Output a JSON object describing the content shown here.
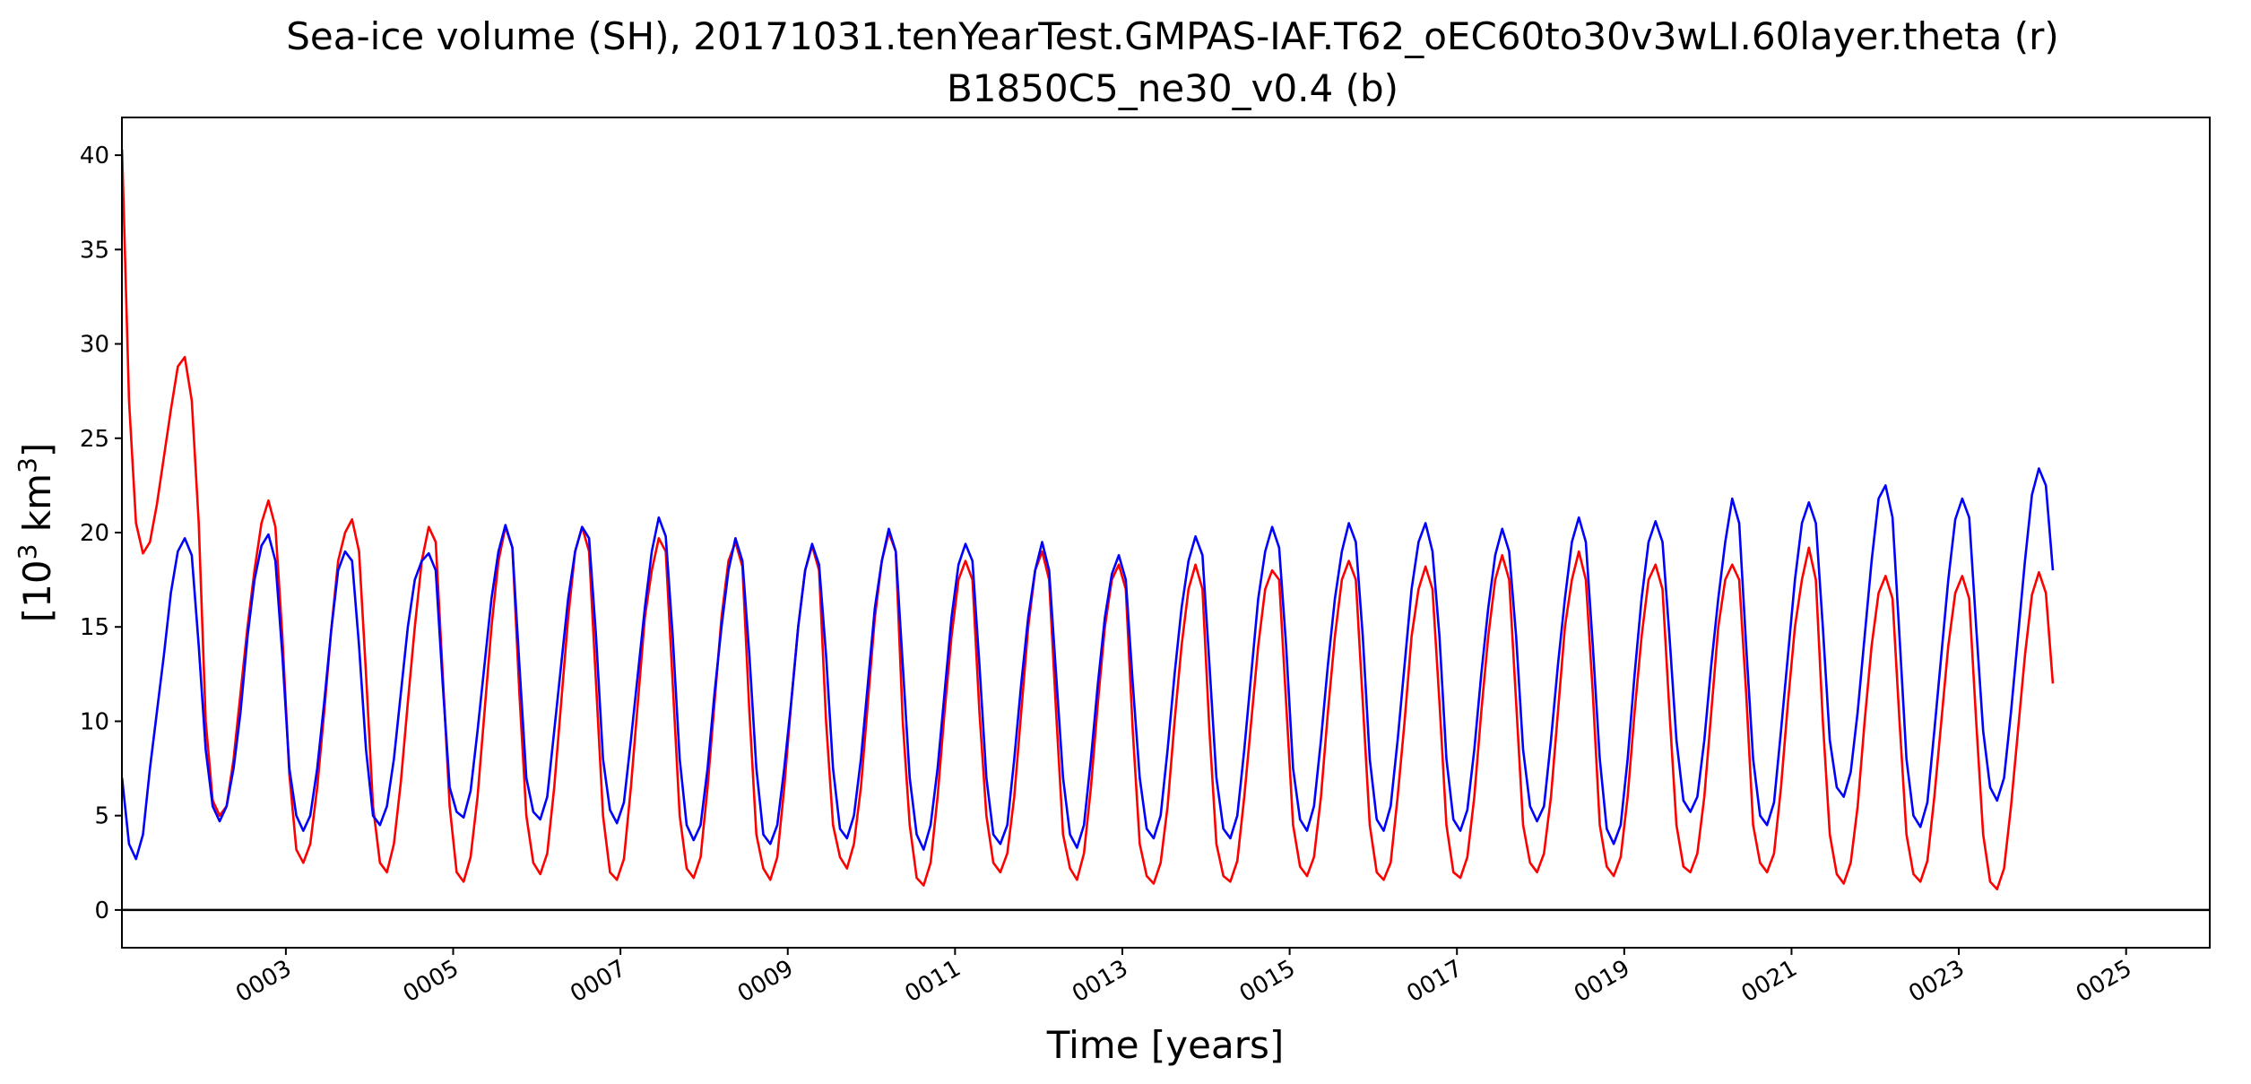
{
  "chart_data": {
    "type": "line",
    "title_line1": "Sea-ice volume (SH), 20171031.tenYearTest.GMPAS-IAF.T62_oEC60to30v3wLI.60layer.theta (r)",
    "title_line2": "B1850C5_ne30_v0.4 (b)",
    "xlabel": "Time [years]",
    "ylabel_base": "[10",
    "ylabel_exp": "3",
    "ylabel_mid": " km",
    "ylabel_exp2": "3",
    "ylabel_end": "]",
    "xlim": [
      1.04,
      26.0
    ],
    "ylim": [
      -2,
      42
    ],
    "xticks": [
      3,
      5,
      7,
      9,
      11,
      13,
      15,
      17,
      19,
      21,
      23,
      25
    ],
    "xtick_labels": [
      "0003",
      "0005",
      "0007",
      "0009",
      "0011",
      "0013",
      "0015",
      "0017",
      "0019",
      "0021",
      "0023",
      "0025"
    ],
    "yticks": [
      0,
      5,
      10,
      15,
      20,
      25,
      30,
      35,
      40
    ],
    "ytick_labels": [
      "0",
      "5",
      "10",
      "15",
      "20",
      "25",
      "30",
      "35",
      "40"
    ],
    "zero_line": true,
    "series": [
      {
        "name": "r",
        "color": "#ff0000",
        "x_start": 1.0417,
        "x_step": 0.08333,
        "values": [
          40.3,
          27.0,
          20.5,
          18.9,
          19.5,
          21.5,
          24.0,
          26.5,
          28.8,
          29.3,
          27.0,
          20.5,
          10.0,
          5.8,
          5.0,
          5.5,
          8.0,
          11.5,
          15.0,
          18.0,
          20.5,
          21.7,
          20.3,
          14.5,
          7.2,
          3.2,
          2.5,
          3.5,
          6.5,
          10.5,
          14.8,
          18.5,
          20.0,
          20.7,
          19.0,
          12.5,
          5.5,
          2.5,
          2.0,
          3.5,
          6.8,
          11.0,
          15.0,
          18.5,
          20.3,
          19.5,
          12.5,
          5.5,
          2.0,
          1.5,
          2.8,
          6.0,
          10.5,
          15.0,
          18.5,
          20.3,
          19.2,
          11.5,
          5.0,
          2.5,
          1.9,
          3.0,
          6.5,
          11.0,
          15.5,
          19.0,
          20.3,
          19.0,
          12.0,
          5.0,
          2.0,
          1.6,
          2.7,
          6.5,
          11.0,
          15.5,
          18.0,
          19.7,
          19.0,
          12.0,
          5.0,
          2.2,
          1.7,
          2.8,
          6.5,
          11.0,
          15.5,
          18.5,
          19.5,
          18.2,
          10.5,
          4.0,
          2.2,
          1.6,
          2.8,
          6.5,
          11.0,
          15.0,
          18.0,
          19.3,
          18.0,
          10.0,
          4.5,
          2.8,
          2.2,
          3.5,
          6.5,
          11.0,
          15.5,
          18.5,
          20.0,
          19.0,
          10.0,
          4.5,
          1.7,
          1.3,
          2.5,
          6.0,
          10.5,
          14.5,
          17.5,
          18.5,
          17.5,
          10.5,
          5.0,
          2.5,
          2.0,
          3.0,
          6.0,
          10.5,
          15.0,
          18.0,
          19.0,
          17.5,
          10.5,
          4.0,
          2.2,
          1.6,
          3.0,
          6.5,
          11.0,
          15.0,
          17.5,
          18.3,
          17.0,
          9.5,
          3.5,
          1.8,
          1.4,
          2.5,
          5.5,
          10.0,
          14.0,
          17.0,
          18.3,
          17.0,
          9.5,
          3.5,
          1.8,
          1.5,
          2.6,
          6.0,
          10.0,
          14.0,
          17.0,
          18.0,
          17.5,
          11.0,
          4.5,
          2.3,
          1.8,
          2.8,
          6.0,
          10.5,
          14.5,
          17.5,
          18.5,
          17.5,
          11.0,
          4.5,
          2.0,
          1.6,
          2.5,
          6.0,
          10.0,
          14.5,
          17.0,
          18.2,
          17.0,
          11.0,
          4.5,
          2.0,
          1.7,
          2.8,
          6.0,
          10.5,
          14.5,
          17.5,
          18.8,
          17.5,
          11.0,
          4.5,
          2.5,
          2.0,
          3.0,
          6.0,
          10.5,
          15.0,
          17.5,
          19.0,
          17.5,
          11.5,
          4.5,
          2.3,
          1.8,
          2.8,
          6.0,
          10.5,
          14.5,
          17.5,
          18.3,
          17.0,
          10.5,
          4.5,
          2.3,
          2.0,
          3.0,
          6.0,
          10.5,
          15.0,
          17.5,
          18.3,
          17.5,
          11.5,
          4.5,
          2.5,
          2.0,
          3.0,
          6.5,
          11.0,
          15.0,
          17.5,
          19.2,
          17.5,
          10.0,
          4.0,
          1.9,
          1.4,
          2.5,
          5.5,
          10.0,
          14.0,
          16.8,
          17.7,
          16.5,
          10.0,
          4.0,
          1.9,
          1.5,
          2.6,
          6.0,
          10.0,
          14.0,
          16.8,
          17.7,
          16.5,
          10.0,
          4.0,
          1.5,
          1.1,
          2.2,
          5.5,
          9.5,
          13.5,
          16.7,
          17.9,
          16.8,
          12.0
        ]
      },
      {
        "name": "b",
        "color": "#0000ff",
        "x_start": 1.0417,
        "x_step": 0.08333,
        "values": [
          7.0,
          3.5,
          2.7,
          4.0,
          7.5,
          10.5,
          13.5,
          16.8,
          19.0,
          19.7,
          18.8,
          14.0,
          8.5,
          5.5,
          4.7,
          5.5,
          7.5,
          10.5,
          14.5,
          17.5,
          19.3,
          19.9,
          18.5,
          13.5,
          7.5,
          5.0,
          4.2,
          5.0,
          7.5,
          11.0,
          14.8,
          18.0,
          19.0,
          18.5,
          14.0,
          8.5,
          5.0,
          4.5,
          5.5,
          8.0,
          11.5,
          15.0,
          17.5,
          18.5,
          18.9,
          18.0,
          12.0,
          6.5,
          5.2,
          4.9,
          6.3,
          9.5,
          13.0,
          16.5,
          19.0,
          20.4,
          19.2,
          13.0,
          7.0,
          5.2,
          4.8,
          6.0,
          9.5,
          13.0,
          16.5,
          19.0,
          20.3,
          19.7,
          14.5,
          8.0,
          5.3,
          4.6,
          5.7,
          9.0,
          12.5,
          16.0,
          19.0,
          20.8,
          19.8,
          14.5,
          8.0,
          4.5,
          3.7,
          4.5,
          7.5,
          11.5,
          15.0,
          18.0,
          19.7,
          18.5,
          13.5,
          7.5,
          4.0,
          3.5,
          4.5,
          7.5,
          11.0,
          15.0,
          18.0,
          19.4,
          18.3,
          13.5,
          7.5,
          4.3,
          3.8,
          5.0,
          8.0,
          12.0,
          16.0,
          18.5,
          20.2,
          19.0,
          13.0,
          7.0,
          4.0,
          3.2,
          4.5,
          7.5,
          11.5,
          15.5,
          18.3,
          19.4,
          18.5,
          13.0,
          7.0,
          4.0,
          3.5,
          4.5,
          8.0,
          12.0,
          15.5,
          18.0,
          19.5,
          18.0,
          12.5,
          7.0,
          4.0,
          3.3,
          4.5,
          8.0,
          12.0,
          15.5,
          17.8,
          18.8,
          17.5,
          12.0,
          7.0,
          4.3,
          3.8,
          5.0,
          8.5,
          12.5,
          16.0,
          18.5,
          19.8,
          18.8,
          13.0,
          7.0,
          4.3,
          3.8,
          5.0,
          8.5,
          12.5,
          16.5,
          19.0,
          20.3,
          19.2,
          14.0,
          7.5,
          4.8,
          4.2,
          5.5,
          9.0,
          13.0,
          16.5,
          19.0,
          20.5,
          19.5,
          14.5,
          8.0,
          4.8,
          4.2,
          5.5,
          9.0,
          13.0,
          17.0,
          19.5,
          20.5,
          19.0,
          14.5,
          8.0,
          4.8,
          4.2,
          5.3,
          8.5,
          12.5,
          16.0,
          18.8,
          20.2,
          19.0,
          14.5,
          8.5,
          5.5,
          4.7,
          5.5,
          9.0,
          13.0,
          16.5,
          19.5,
          20.8,
          19.5,
          14.0,
          8.0,
          4.3,
          3.5,
          4.5,
          8.0,
          12.5,
          16.5,
          19.5,
          20.6,
          19.5,
          14.5,
          9.0,
          5.8,
          5.2,
          6.0,
          9.0,
          13.0,
          16.5,
          19.5,
          21.8,
          20.5,
          14.0,
          8.0,
          5.0,
          4.5,
          5.7,
          9.5,
          13.5,
          17.5,
          20.5,
          21.6,
          20.5,
          15.0,
          9.0,
          6.5,
          6.0,
          7.3,
          10.5,
          14.5,
          18.5,
          21.8,
          22.5,
          20.8,
          14.5,
          8.0,
          5.0,
          4.4,
          5.7,
          9.5,
          13.5,
          17.5,
          20.7,
          21.8,
          20.8,
          15.0,
          9.5,
          6.5,
          5.8,
          7.0,
          10.5,
          14.5,
          18.5,
          22.0,
          23.4,
          22.5,
          18.0
        ]
      }
    ]
  }
}
